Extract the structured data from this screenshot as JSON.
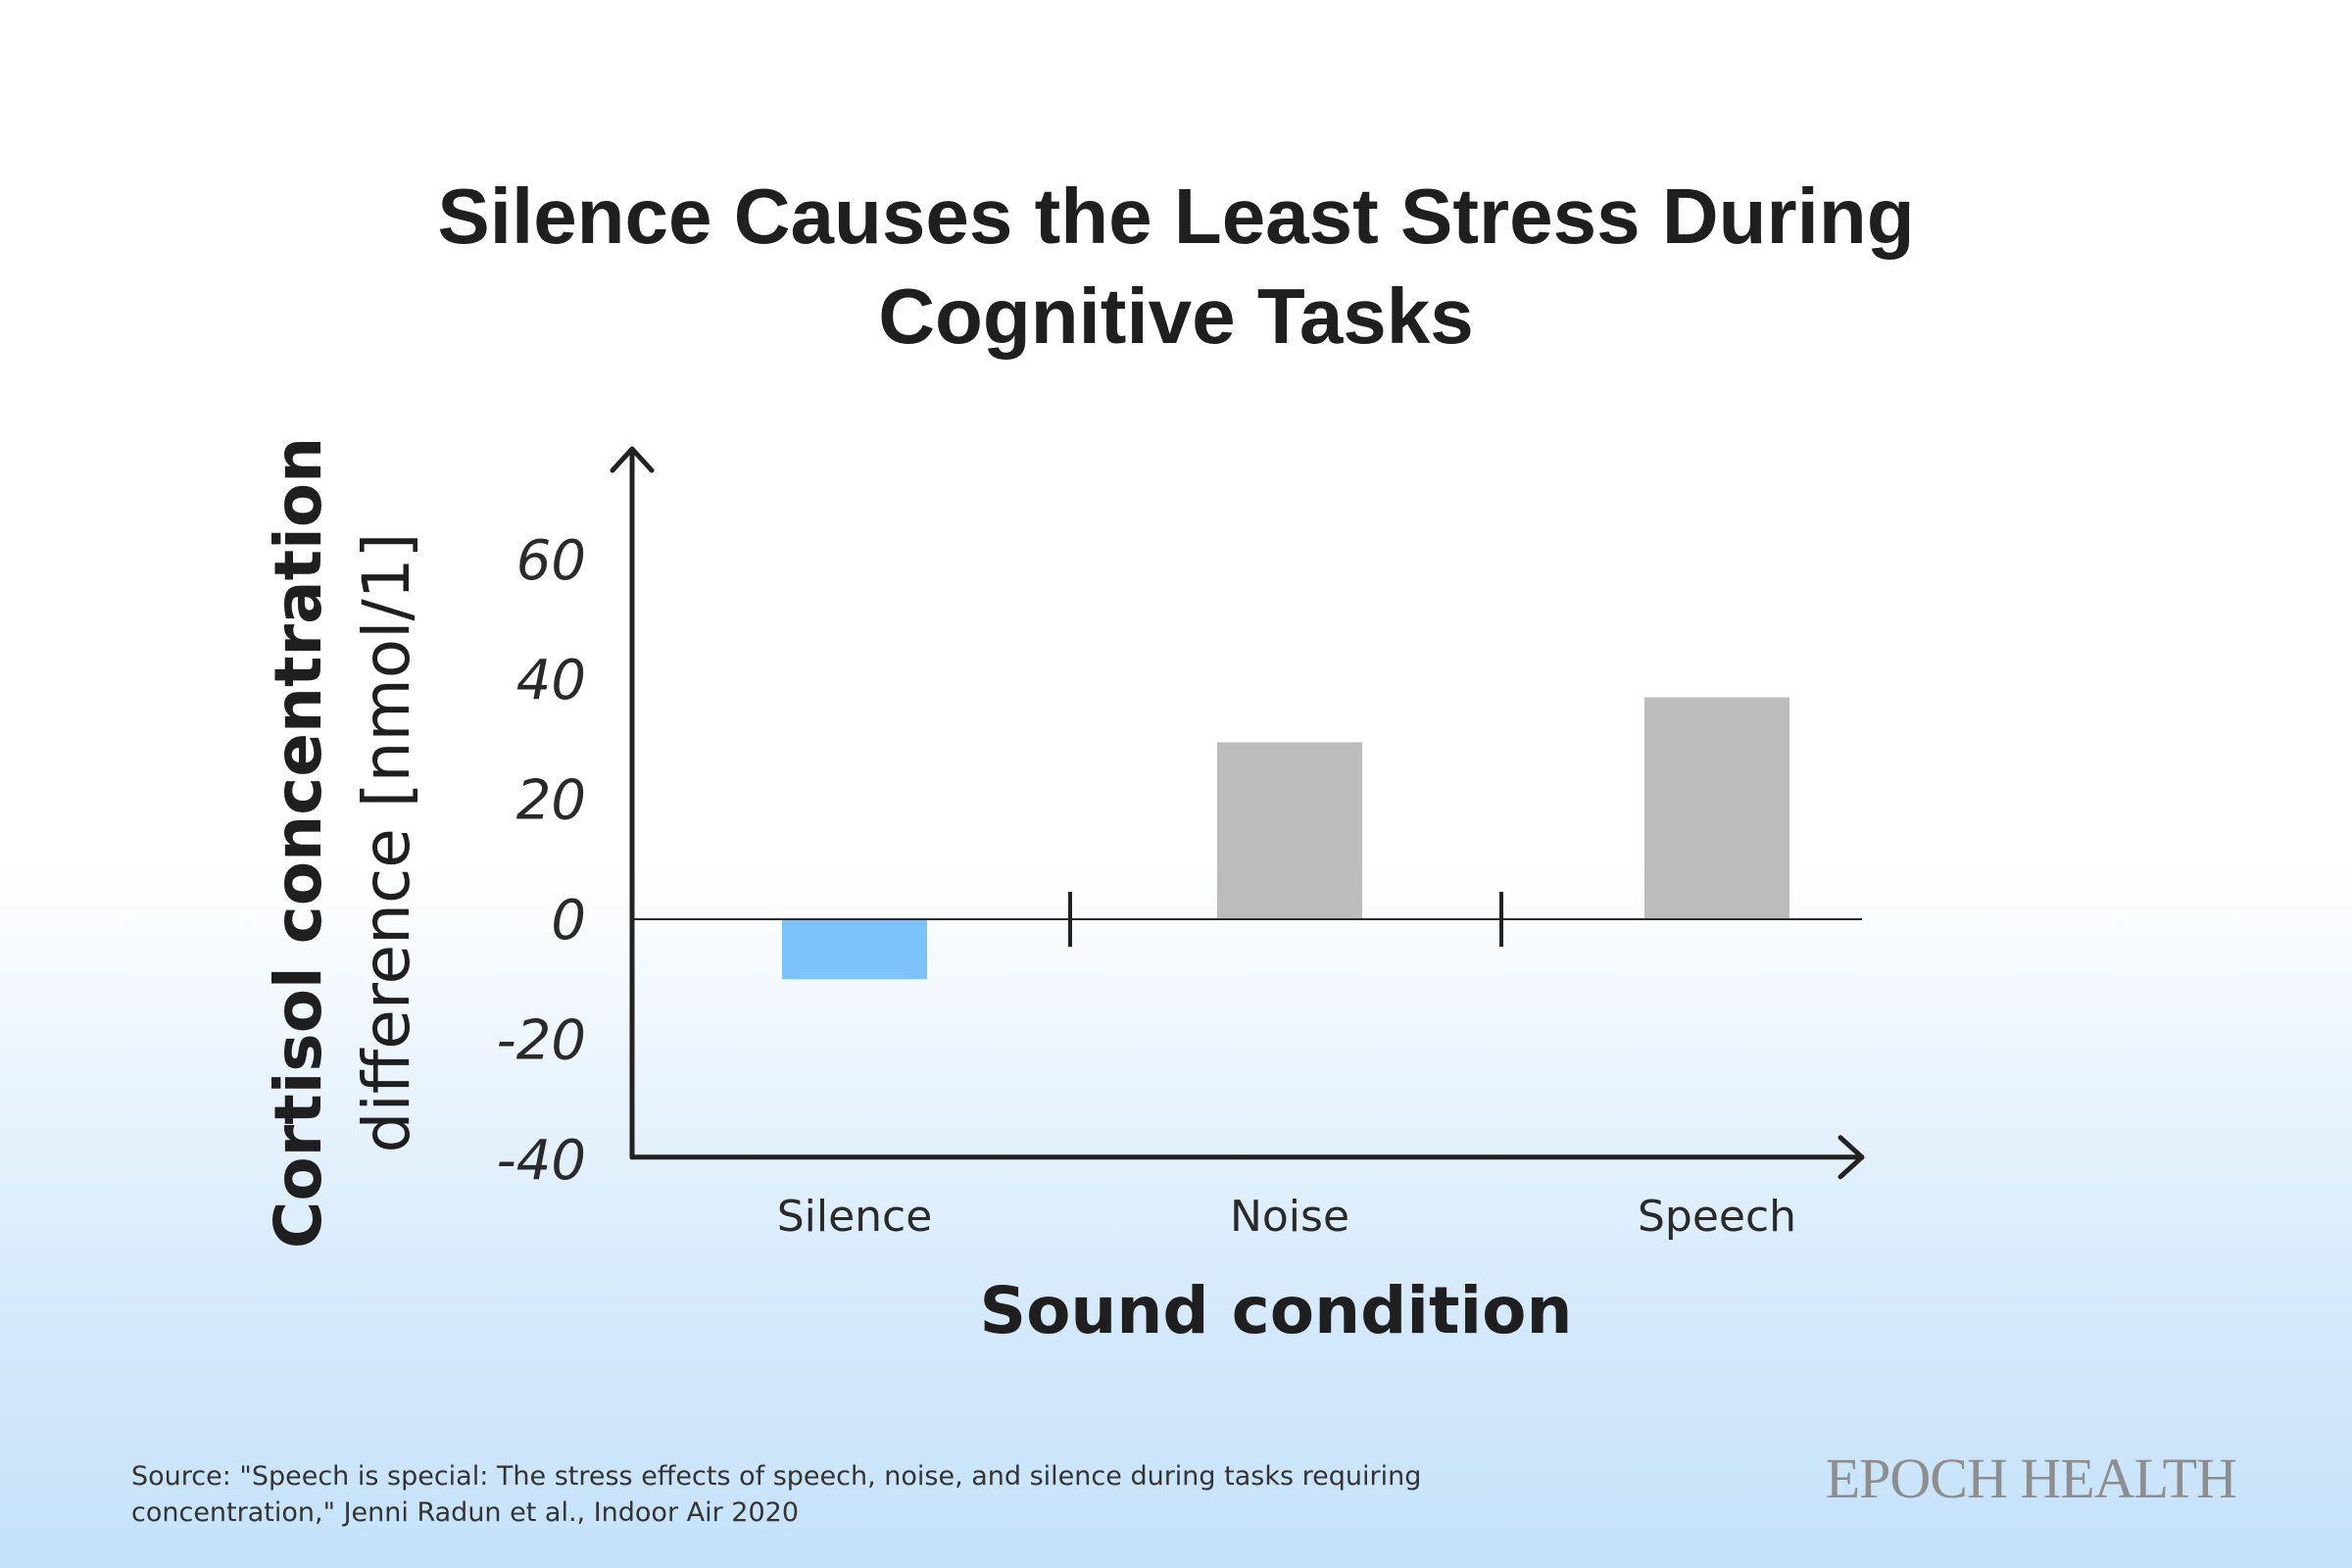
{
  "chart_data": {
    "type": "bar",
    "title_lines": [
      "Silence Causes the Least Stress During",
      "Cognitive Tasks"
    ],
    "xlabel": "Sound condition",
    "ylabel_lines": [
      "Cortisol concentration",
      "difference [nmol/1]"
    ],
    "categories": [
      "Silence",
      "Noise",
      "Speech"
    ],
    "values": [
      -10,
      29.5,
      37
    ],
    "bar_colors": [
      "#7cc3fb",
      "#bcbcbc",
      "#bcbcbc"
    ],
    "yticks": [
      60,
      40,
      20,
      0,
      -20,
      -40
    ],
    "ylim": [
      -40,
      75
    ],
    "grid": false,
    "legend": "none"
  },
  "footer": {
    "source": "Source: \"Speech is special: The stress effects of speech, noise, and silence during tasks requiring concentration,\" Jenni Radun et al., Indoor Air 2020",
    "brand": "EPOCH HEALTH"
  }
}
